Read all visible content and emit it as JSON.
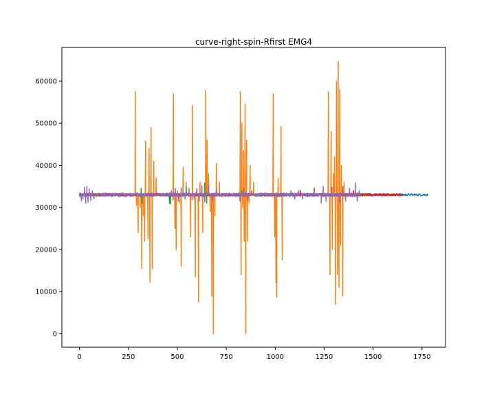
{
  "chart_data": {
    "type": "line",
    "title": "curve-right-spin-Rfirst EMG4",
    "xlabel": "",
    "ylabel": "",
    "xlim": [
      -90,
      1870
    ],
    "ylim": [
      -3200,
      68000
    ],
    "xticks": [
      0,
      250,
      500,
      750,
      1000,
      1250,
      1500,
      1750
    ],
    "yticks": [
      0,
      10000,
      20000,
      30000,
      40000,
      50000,
      60000
    ],
    "grid": false,
    "legend": "none",
    "series": [
      {
        "color": "#1f77b4",
        "length": 1780,
        "baseline": 33000,
        "noise": 250,
        "bursts": []
      },
      {
        "color": "#ff7f0e",
        "length": 1450,
        "baseline": 33000,
        "noise": 300,
        "bursts": [
          [
            285,
            57500
          ],
          [
            292,
            30500
          ],
          [
            300,
            24000
          ],
          [
            310,
            30000
          ],
          [
            318,
            15500
          ],
          [
            325,
            28000
          ],
          [
            333,
            22000
          ],
          [
            338,
            45800
          ],
          [
            344,
            33000
          ],
          [
            350,
            22500
          ],
          [
            355,
            44000
          ],
          [
            360,
            12200
          ],
          [
            366,
            49000
          ],
          [
            372,
            15500
          ],
          [
            380,
            41000
          ],
          [
            392,
            37000
          ],
          [
            480,
            57000
          ],
          [
            488,
            25000
          ],
          [
            494,
            20000
          ],
          [
            500,
            34000
          ],
          [
            510,
            31000
          ],
          [
            520,
            16000
          ],
          [
            530,
            39500
          ],
          [
            545,
            36000
          ],
          [
            568,
            23000
          ],
          [
            578,
            54200
          ],
          [
            586,
            32000
          ],
          [
            592,
            13500
          ],
          [
            600,
            34000
          ],
          [
            608,
            7500
          ],
          [
            616,
            36000
          ],
          [
            630,
            24000
          ],
          [
            645,
            57800
          ],
          [
            652,
            46000
          ],
          [
            660,
            38000
          ],
          [
            668,
            29000
          ],
          [
            676,
            9000
          ],
          [
            684,
            0
          ],
          [
            692,
            28000
          ],
          [
            700,
            40500
          ],
          [
            715,
            36000
          ],
          [
            822,
            57500
          ],
          [
            826,
            14000
          ],
          [
            830,
            50000
          ],
          [
            834,
            30000
          ],
          [
            838,
            43500
          ],
          [
            842,
            22000
          ],
          [
            846,
            54500
          ],
          [
            850,
            0
          ],
          [
            854,
            46000
          ],
          [
            858,
            22000
          ],
          [
            866,
            31000
          ],
          [
            872,
            40000
          ],
          [
            890,
            36000
          ],
          [
            990,
            57000
          ],
          [
            998,
            23000
          ],
          [
            1004,
            12000
          ],
          [
            1008,
            8700
          ],
          [
            1015,
            37000
          ],
          [
            1030,
            49200
          ],
          [
            1036,
            17500
          ],
          [
            1272,
            57500
          ],
          [
            1280,
            14000
          ],
          [
            1286,
            48000
          ],
          [
            1292,
            20000
          ],
          [
            1298,
            38000
          ],
          [
            1303,
            42000
          ],
          [
            1308,
            7000
          ],
          [
            1313,
            60000
          ],
          [
            1318,
            14000
          ],
          [
            1322,
            64700
          ],
          [
            1326,
            11000
          ],
          [
            1330,
            58000
          ],
          [
            1334,
            21000
          ],
          [
            1338,
            40000
          ],
          [
            1345,
            9000
          ],
          [
            1352,
            36000
          ]
        ]
      },
      {
        "color": "#2ca02c",
        "length": 1480,
        "baseline": 33000,
        "noise": 300,
        "bursts": [
          [
            315,
            34500
          ],
          [
            320,
            31000
          ],
          [
            460,
            31000
          ],
          [
            465,
            30800
          ],
          [
            470,
            33800
          ],
          [
            545,
            35000
          ],
          [
            640,
            35800
          ],
          [
            650,
            31000
          ],
          [
            830,
            34000
          ]
        ]
      },
      {
        "color": "#d62728",
        "length": 1650,
        "baseline": 33000,
        "noise": 300,
        "bursts": [
          [
            1130,
            34000
          ],
          [
            1200,
            34500
          ],
          [
            1400,
            34000
          ]
        ]
      },
      {
        "color": "#9467bd",
        "length": 1440,
        "baseline": 33000,
        "noise": 450,
        "bursts": [
          [
            4,
            33500
          ],
          [
            10,
            31500
          ],
          [
            18,
            32000
          ],
          [
            26,
            34800
          ],
          [
            32,
            31000
          ],
          [
            38,
            35000
          ],
          [
            44,
            31200
          ],
          [
            50,
            34400
          ],
          [
            58,
            31600
          ],
          [
            66,
            34000
          ],
          [
            74,
            32000
          ],
          [
            470,
            34000
          ],
          [
            478,
            31800
          ],
          [
            490,
            34500
          ],
          [
            505,
            31500
          ],
          [
            520,
            34600
          ],
          [
            540,
            32000
          ],
          [
            560,
            34500
          ],
          [
            575,
            31800
          ],
          [
            600,
            34500
          ],
          [
            612,
            31500
          ],
          [
            625,
            35200
          ],
          [
            640,
            31300
          ],
          [
            660,
            35200
          ],
          [
            680,
            31500
          ],
          [
            700,
            34500
          ],
          [
            820,
            31500
          ],
          [
            840,
            34500
          ],
          [
            860,
            31600
          ],
          [
            880,
            34000
          ],
          [
            1080,
            34000
          ],
          [
            1100,
            32000
          ],
          [
            1120,
            34000
          ],
          [
            1140,
            32000
          ],
          [
            1200,
            34000
          ],
          [
            1235,
            31000
          ],
          [
            1245,
            35000
          ],
          [
            1260,
            31500
          ],
          [
            1290,
            34800
          ],
          [
            1330,
            31200
          ],
          [
            1345,
            35000
          ],
          [
            1360,
            31500
          ],
          [
            1380,
            34500
          ],
          [
            1410,
            35800
          ],
          [
            1420,
            31500
          ],
          [
            1430,
            34000
          ]
        ]
      }
    ]
  }
}
